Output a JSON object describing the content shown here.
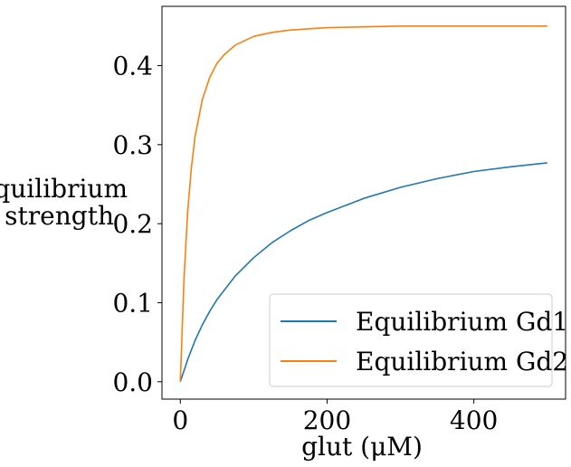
{
  "chart_data": {
    "type": "line",
    "title": "",
    "xlabel": "glut (μM)",
    "ylabel_lines": [
      "equilibrium",
      "strength"
    ],
    "xlim": [
      -25,
      525
    ],
    "ylim": [
      -0.022,
      0.475
    ],
    "xticks": [
      0,
      200,
      400
    ],
    "xtick_labels": [
      "0",
      "200",
      "400"
    ],
    "yticks": [
      0.0,
      0.1,
      0.2,
      0.3,
      0.4
    ],
    "ytick_labels": [
      "0.0",
      "0.1",
      "0.2",
      "0.3",
      "0.4"
    ],
    "grid": false,
    "legend_position": "bottom-right",
    "series": [
      {
        "name": "Equilibrium Gd1",
        "color": "#1f77b4",
        "x": [
          0,
          10,
          20,
          30,
          40,
          50,
          75,
          100,
          125,
          150,
          175,
          200,
          250,
          300,
          350,
          400,
          450,
          500
        ],
        "y": [
          0.0,
          0.028,
          0.052,
          0.072,
          0.089,
          0.104,
          0.134,
          0.157,
          0.176,
          0.191,
          0.204,
          0.214,
          0.232,
          0.246,
          0.257,
          0.266,
          0.272,
          0.277
        ]
      },
      {
        "name": "Equilibrium Gd2",
        "color": "#ff7f0e",
        "x": [
          0,
          5,
          10,
          15,
          20,
          30,
          40,
          50,
          60,
          75,
          100,
          125,
          150,
          200,
          250,
          300,
          400,
          500
        ],
        "y": [
          0.0,
          0.13,
          0.215,
          0.27,
          0.31,
          0.357,
          0.385,
          0.403,
          0.414,
          0.426,
          0.437,
          0.442,
          0.445,
          0.448,
          0.449,
          0.45,
          0.45,
          0.45
        ]
      }
    ]
  }
}
